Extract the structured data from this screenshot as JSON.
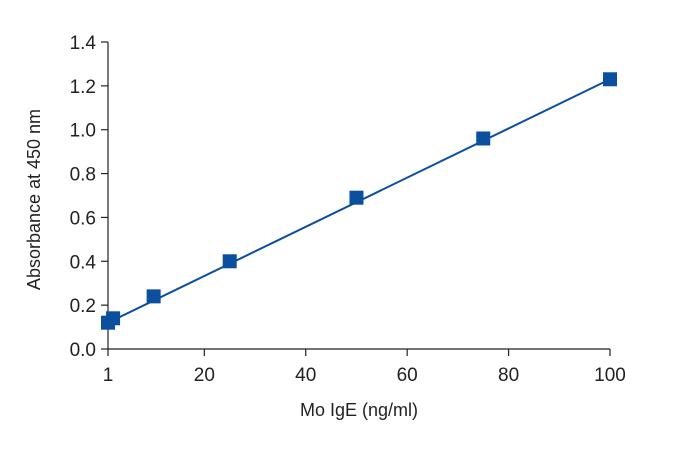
{
  "chart_data": {
    "type": "scatter",
    "title": "",
    "xlabel": "Mo IgE (ng/ml)",
    "ylabel": "Absorbance at 450 nm",
    "xlim": [
      1,
      100
    ],
    "ylim": [
      0.0,
      1.4
    ],
    "xticks": [
      1,
      20,
      40,
      60,
      80,
      100
    ],
    "xtick_labels": [
      "1",
      "20",
      "40",
      "60",
      "80",
      "100"
    ],
    "yticks": [
      0.0,
      0.2,
      0.4,
      0.6,
      0.8,
      1.0,
      1.2,
      1.4
    ],
    "ytick_labels": [
      "0.0",
      "0.2",
      "0.4",
      "0.6",
      "0.8",
      "1.0",
      "1.2",
      "1.4"
    ],
    "grid": false,
    "legend": "none",
    "series": [
      {
        "marker": "square",
        "color": "#0b4f9e",
        "points": [
          {
            "x": 1.0,
            "y": 0.12
          },
          {
            "x": 2.0,
            "y": 0.14
          },
          {
            "x": 10.0,
            "y": 0.24
          },
          {
            "x": 25.0,
            "y": 0.4
          },
          {
            "x": 50.0,
            "y": 0.69
          },
          {
            "x": 75.0,
            "y": 0.96
          },
          {
            "x": 100.0,
            "y": 1.23
          }
        ]
      }
    ],
    "fit_line": {
      "type": "linear",
      "color": "#0b4f9e",
      "from": {
        "x": 1.0,
        "y": 0.12
      },
      "to": {
        "x": 100.0,
        "y": 1.23
      }
    }
  }
}
